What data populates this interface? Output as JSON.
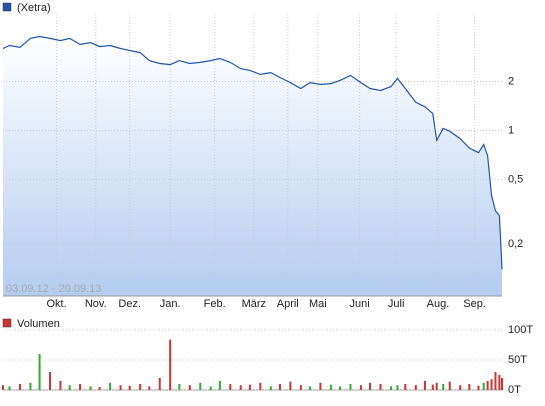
{
  "chart_data": [
    {
      "type": "line",
      "legend": "(Xetra)",
      "color": "#2255aa",
      "date_range": "03.09.12 - 20.09.13",
      "log_scale": true,
      "grid": true,
      "x": [
        0,
        5,
        13,
        21,
        28,
        36,
        44,
        51,
        59,
        67,
        74,
        82,
        90,
        97,
        105,
        112,
        120,
        128,
        135,
        143,
        151,
        159,
        166,
        174,
        182,
        189,
        197,
        205,
        212,
        220,
        228,
        235,
        243,
        251,
        258,
        266,
        274,
        281,
        289,
        297,
        302,
        308,
        316,
        323,
        329,
        332,
        337,
        342,
        350,
        357,
        364,
        368,
        371,
        374,
        377,
        380,
        382
      ],
      "values": [
        3.19,
        3.33,
        3.24,
        3.68,
        3.78,
        3.68,
        3.57,
        3.68,
        3.38,
        3.47,
        3.28,
        3.33,
        3.19,
        3.1,
        3.01,
        2.69,
        2.58,
        2.54,
        2.69,
        2.58,
        2.62,
        2.69,
        2.77,
        2.62,
        2.4,
        2.34,
        2.21,
        2.27,
        2.12,
        1.97,
        1.81,
        1.97,
        1.92,
        1.94,
        2.03,
        2.18,
        1.97,
        1.81,
        1.76,
        1.86,
        2.09,
        1.81,
        1.49,
        1.4,
        1.27,
        0.87,
        1.03,
        0.99,
        0.89,
        0.78,
        0.73,
        0.82,
        0.7,
        0.4,
        0.32,
        0.3,
        0.14
      ],
      "xlim": [
        0,
        382
      ],
      "xticks": [
        {
          "value": 41,
          "label": "Okt."
        },
        {
          "value": 71,
          "label": "Nov."
        },
        {
          "value": 97,
          "label": "Dez."
        },
        {
          "value": 128,
          "label": "Jan."
        },
        {
          "value": 162,
          "label": "Feb."
        },
        {
          "value": 192,
          "label": "März"
        },
        {
          "value": 218,
          "label": "April"
        },
        {
          "value": 241,
          "label": "Mai"
        },
        {
          "value": 273,
          "label": "Juni"
        },
        {
          "value": 301,
          "label": "Juli"
        },
        {
          "value": 333,
          "label": "Aug."
        },
        {
          "value": 361,
          "label": "Sep."
        }
      ],
      "ylim": [
        0.096,
        5.2
      ],
      "yticks": [
        {
          "value": 0.2,
          "label": "0,2"
        },
        {
          "value": 0.5,
          "label": "0,5"
        },
        1,
        2
      ]
    },
    {
      "type": "bar",
      "legend": "Volumen",
      "color": "#cc3333",
      "up_color": "#33aa33",
      "x": [
        0,
        5,
        13,
        21,
        28,
        36,
        44,
        51,
        59,
        67,
        74,
        82,
        90,
        97,
        105,
        112,
        120,
        128,
        135,
        143,
        151,
        159,
        166,
        174,
        182,
        189,
        197,
        205,
        212,
        220,
        228,
        235,
        243,
        251,
        258,
        266,
        274,
        281,
        289,
        297,
        302,
        308,
        316,
        323,
        329,
        332,
        337,
        342,
        350,
        357,
        364,
        368,
        371,
        374,
        377,
        380,
        382
      ],
      "values": [
        8,
        6,
        10,
        12,
        60,
        30,
        15,
        8,
        10,
        6,
        5,
        12,
        8,
        7,
        10,
        6,
        20,
        84,
        10,
        8,
        12,
        6,
        15,
        10,
        8,
        9,
        12,
        6,
        10,
        14,
        8,
        6,
        12,
        9,
        6,
        10,
        8,
        12,
        10,
        6,
        8,
        10,
        8,
        15,
        9,
        12,
        10,
        14,
        8,
        10,
        7,
        12,
        15,
        18,
        30,
        25,
        20
      ],
      "xlim": [
        0,
        382
      ],
      "ylim": [
        0,
        105
      ],
      "yticks": [
        {
          "value": 0,
          "label": "0T"
        },
        {
          "value": 50,
          "label": "50T"
        },
        {
          "value": 100,
          "label": "100T"
        }
      ]
    }
  ]
}
